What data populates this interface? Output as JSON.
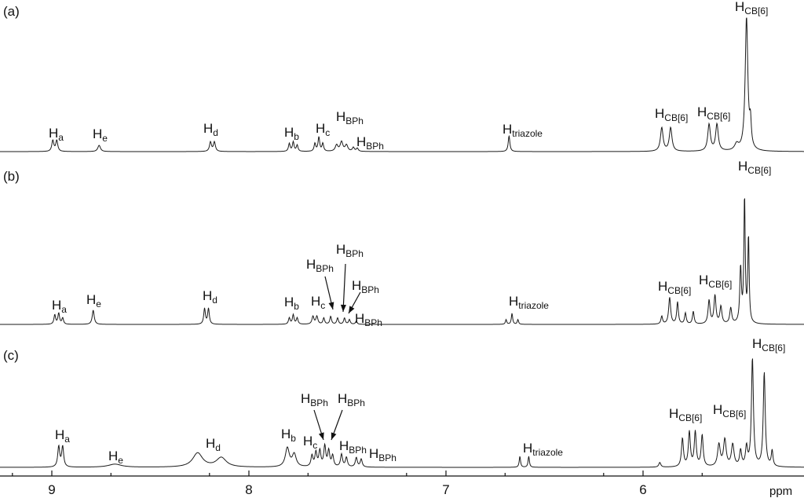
{
  "chart_data": {
    "type": "line",
    "x_axis": {
      "ticks": [
        9,
        8,
        7,
        6
      ],
      "unit_label": "ppm",
      "range": [
        9.25,
        5.2
      ],
      "reversed": true
    },
    "panels": [
      {
        "label": "(a)",
        "peaks": [
          {
            "name": "H",
            "sub": "a",
            "ppm": 8.98
          },
          {
            "name": "H",
            "sub": "e",
            "ppm": 8.76
          },
          {
            "name": "H",
            "sub": "d",
            "ppm": 8.18
          },
          {
            "name": "H",
            "sub": "b",
            "ppm": 7.78
          },
          {
            "name": "H",
            "sub": "c",
            "ppm": 7.64
          },
          {
            "name": "H",
            "sub": "BPh",
            "ppm": 7.53
          },
          {
            "name": "H",
            "sub": "BPh",
            "ppm": 7.46
          },
          {
            "name": "H",
            "sub": "triazole",
            "ppm": 6.68
          },
          {
            "name": "H",
            "sub": "CB[6]",
            "ppm": 5.88
          },
          {
            "name": "H",
            "sub": "CB[6]",
            "ppm": 5.64
          },
          {
            "name": "H",
            "sub": "CB[6]",
            "ppm": 5.47
          }
        ]
      },
      {
        "label": "(b)",
        "peaks": [
          {
            "name": "H",
            "sub": "a",
            "ppm": 8.97
          },
          {
            "name": "H",
            "sub": "e",
            "ppm": 8.79
          },
          {
            "name": "H",
            "sub": "d",
            "ppm": 8.22
          },
          {
            "name": "H",
            "sub": "b",
            "ppm": 7.78
          },
          {
            "name": "H",
            "sub": "c",
            "ppm": 7.66
          },
          {
            "name": "H",
            "sub": "BPh",
            "ppm": 7.58
          },
          {
            "name": "H",
            "sub": "BPh",
            "ppm": 7.52
          },
          {
            "name": "H",
            "sub": "BPh",
            "ppm": 7.49
          },
          {
            "name": "H",
            "sub": "BPh",
            "ppm": 7.45
          },
          {
            "name": "H",
            "sub": "triazole",
            "ppm": 6.66
          },
          {
            "name": "H",
            "sub": "CB[6]",
            "ppm": 5.84
          },
          {
            "name": "H",
            "sub": "CB[6]",
            "ppm": 5.64
          },
          {
            "name": "H",
            "sub": "CB[6]",
            "ppm": 5.46
          }
        ]
      },
      {
        "label": "(c)",
        "peaks": [
          {
            "name": "H",
            "sub": "a",
            "ppm": 8.95
          },
          {
            "name": "H",
            "sub": "e",
            "ppm": 8.68
          },
          {
            "name": "H",
            "sub": "d",
            "ppm": 8.22
          },
          {
            "name": "H",
            "sub": "b",
            "ppm": 7.79
          },
          {
            "name": "H",
            "sub": "c",
            "ppm": 7.68
          },
          {
            "name": "H",
            "sub": "BPh",
            "ppm": 7.62
          },
          {
            "name": "H",
            "sub": "BPh",
            "ppm": 7.6
          },
          {
            "name": "H",
            "sub": "BPh",
            "ppm": 7.5
          },
          {
            "name": "H",
            "sub": "BPh",
            "ppm": 7.44
          },
          {
            "name": "H",
            "sub": "triazole",
            "ppm": 6.6
          },
          {
            "name": "H",
            "sub": "CB[6]",
            "ppm": 5.76
          },
          {
            "name": "H",
            "sub": "CB[6]",
            "ppm": 5.56
          },
          {
            "name": "H",
            "sub": "CB[6]",
            "ppm": 5.44
          }
        ]
      }
    ]
  }
}
